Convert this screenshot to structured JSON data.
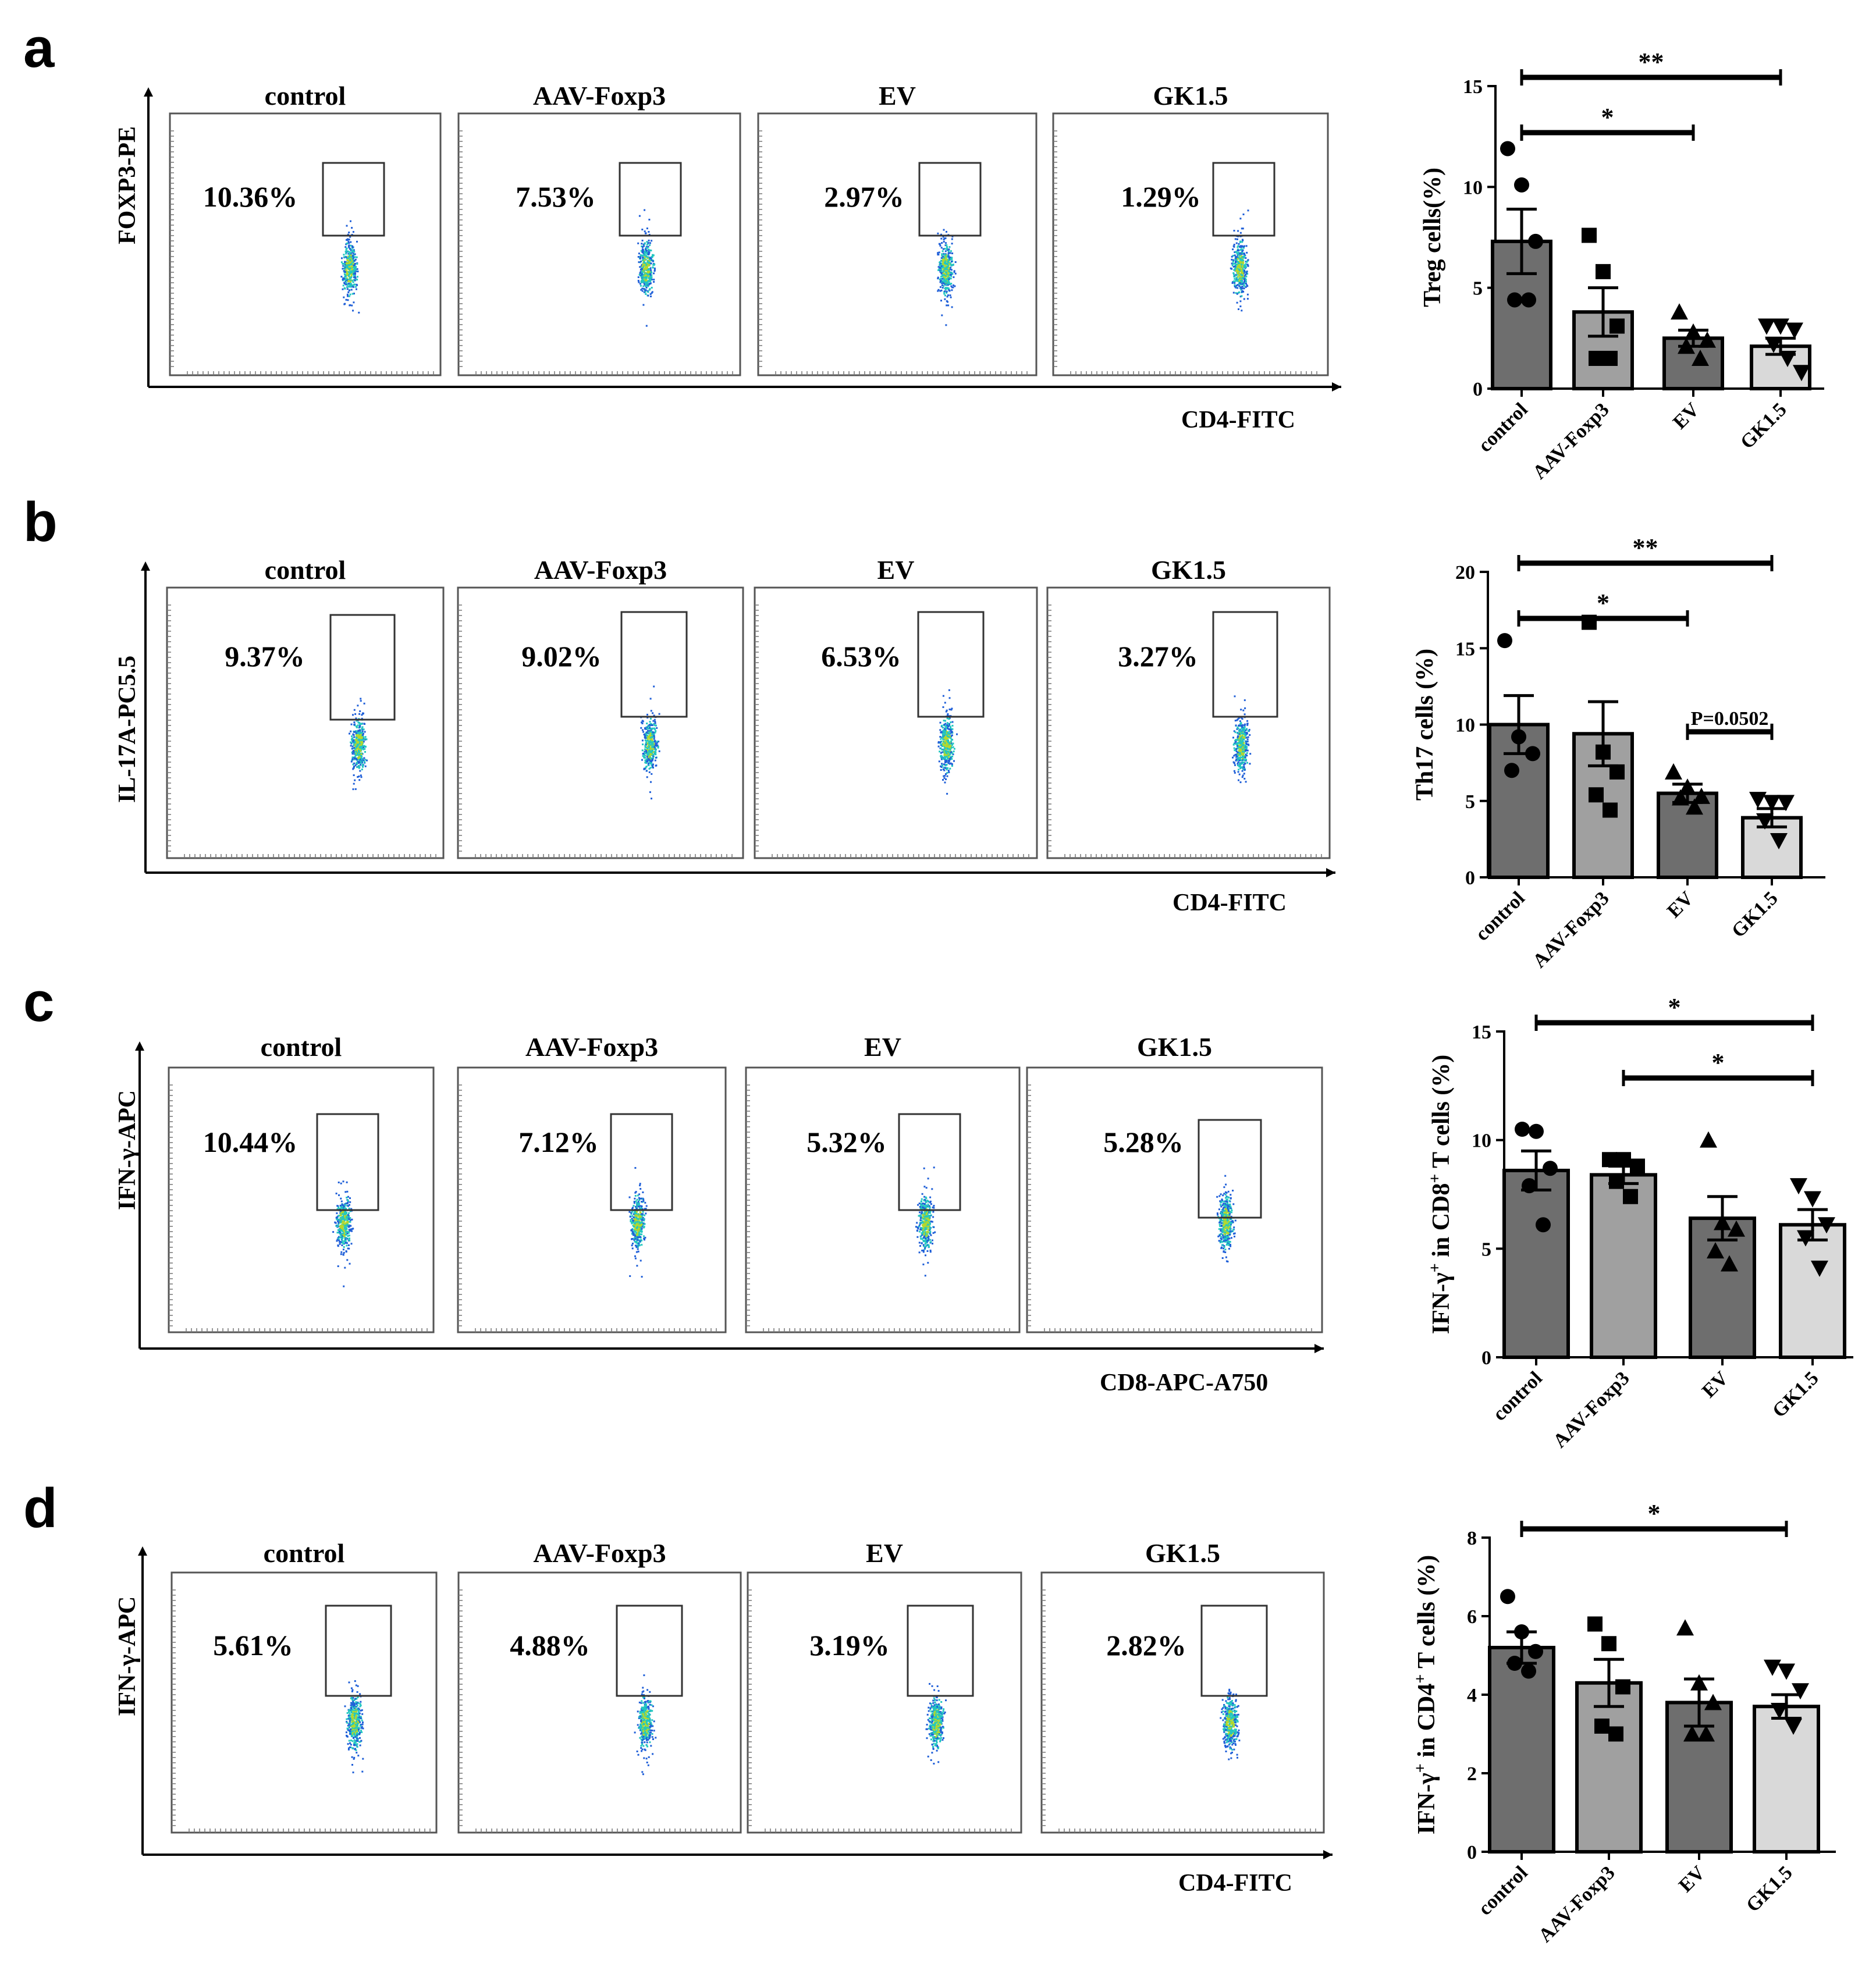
{
  "colors": {
    "bar_dark": "#6e6e6e",
    "bar_medium": "#a0a0a0",
    "bar_light": "#d9d9d9",
    "axis": "#000000",
    "dot_low": "#1f5fd8",
    "dot_mid": "#22c7c0",
    "dot_high": "#b7d82a"
  },
  "panels": [
    {
      "label": "a",
      "y_axis_label": "FOXP3-PE",
      "x_axis_label": "CD4-FITC",
      "plots": [
        {
          "title": "control",
          "percentage": "10.36%"
        },
        {
          "title": "AAV-Foxp3",
          "percentage": "7.53%"
        },
        {
          "title": "EV",
          "percentage": "2.97%"
        },
        {
          "title": "GK1.5",
          "percentage": "1.29%"
        }
      ]
    },
    {
      "label": "b",
      "y_axis_label": "IL-17A-PC5.5",
      "x_axis_label": "CD4-FITC",
      "plots": [
        {
          "title": "control",
          "percentage": "9.37%"
        },
        {
          "title": "AAV-Foxp3",
          "percentage": "9.02%"
        },
        {
          "title": "EV",
          "percentage": "6.53%"
        },
        {
          "title": "GK1.5",
          "percentage": "3.27%"
        }
      ]
    },
    {
      "label": "c",
      "y_axis_label": "IFN-γ-APC",
      "x_axis_label": "CD8-APC-A750",
      "plots": [
        {
          "title": "control",
          "percentage": "10.44%"
        },
        {
          "title": "AAV-Foxp3",
          "percentage": "7.12%"
        },
        {
          "title": "EV",
          "percentage": "5.32%"
        },
        {
          "title": "GK1.5",
          "percentage": "5.28%"
        }
      ]
    },
    {
      "label": "d",
      "y_axis_label": "IFN-γ-APC",
      "x_axis_label": "CD4-FITC",
      "plots": [
        {
          "title": "control",
          "percentage": "5.61%"
        },
        {
          "title": "AAV-Foxp3",
          "percentage": "4.88%"
        },
        {
          "title": "EV",
          "percentage": "3.19%"
        },
        {
          "title": "GK1.5",
          "percentage": "2.82%"
        }
      ]
    }
  ],
  "chart_data": [
    {
      "type": "bar",
      "panel": "a",
      "ylabel_parts": [
        "Treg cells(%)"
      ],
      "ylim": [
        0,
        15
      ],
      "yticks": [
        0,
        5,
        10,
        15
      ],
      "categories": [
        "control",
        "AAV-Foxp3",
        "EV",
        "GK1.5"
      ],
      "values": [
        7.3,
        3.8,
        2.5,
        2.1
      ],
      "sem": [
        1.6,
        1.2,
        0.4,
        0.4
      ],
      "points": [
        [
          11.9,
          10.1,
          7.3,
          4.4,
          4.4
        ],
        [
          7.6,
          5.8,
          3.1,
          1.5,
          1.5
        ],
        [
          3.8,
          2.8,
          2.4,
          2.1,
          1.5
        ],
        [
          3.1,
          3.1,
          2.9,
          2.2,
          1.5,
          0.8
        ]
      ],
      "markers": [
        "circle",
        "square",
        "triangle",
        "triangle-down"
      ],
      "significance": [
        {
          "from": 0,
          "to": 3,
          "label": "**"
        },
        {
          "from": 0,
          "to": 2,
          "label": "*"
        }
      ]
    },
    {
      "type": "bar",
      "panel": "b",
      "ylabel_parts": [
        "Th17 cells (%)"
      ],
      "ylim": [
        0,
        20
      ],
      "yticks": [
        0,
        5,
        10,
        15,
        20
      ],
      "categories": [
        "control",
        "AAV-Foxp3",
        "EV",
        "GK1.5"
      ],
      "values": [
        10.0,
        9.4,
        5.5,
        3.9
      ],
      "sem": [
        1.9,
        2.1,
        0.6,
        0.6
      ],
      "points": [
        [
          15.5,
          9.2,
          8.1,
          7.0
        ],
        [
          16.7,
          8.2,
          6.9,
          5.4,
          4.4
        ],
        [
          6.9,
          5.9,
          5.3,
          5.2,
          4.6
        ],
        [
          5.1,
          4.9,
          4.9,
          3.7,
          2.4
        ]
      ],
      "markers": [
        "circle",
        "square",
        "triangle",
        "triangle-down"
      ],
      "significance": [
        {
          "from": 0,
          "to": 3,
          "label": "**"
        },
        {
          "from": 0,
          "to": 2,
          "label": "*"
        },
        {
          "from": 2,
          "to": 3,
          "label": "P=0.0502"
        }
      ]
    },
    {
      "type": "bar",
      "panel": "c",
      "ylabel_parts": [
        "IFN-γ",
        "+",
        " in CD8",
        "+",
        " T cells (%)"
      ],
      "ylim": [
        0,
        15
      ],
      "yticks": [
        0,
        5,
        10,
        15
      ],
      "categories": [
        "control",
        "AAV-Foxp3",
        "EV",
        "GK1.5"
      ],
      "values": [
        8.6,
        8.4,
        6.4,
        6.1
      ],
      "sem": [
        0.9,
        0.4,
        1.0,
        0.7
      ],
      "points": [
        [
          10.5,
          10.4,
          8.7,
          7.9,
          6.1
        ],
        [
          9.1,
          9.1,
          8.8,
          8.1,
          7.4
        ],
        [
          10.0,
          6.2,
          5.9,
          4.9,
          4.3
        ],
        [
          7.9,
          7.3,
          6.1,
          5.5,
          4.1
        ]
      ],
      "markers": [
        "circle",
        "square",
        "triangle",
        "triangle-down"
      ],
      "significance": [
        {
          "from": 0,
          "to": 3,
          "label": "*"
        },
        {
          "from": 1,
          "to": 3,
          "label": "*"
        }
      ]
    },
    {
      "type": "bar",
      "panel": "d",
      "ylabel_parts": [
        "IFN-γ",
        "+",
        " in CD4",
        "+",
        " T cells (%)"
      ],
      "ylim": [
        0,
        8
      ],
      "yticks": [
        0,
        2,
        4,
        6,
        8
      ],
      "categories": [
        "control",
        "AAV-Foxp3",
        "EV",
        "GK1.5"
      ],
      "values": [
        5.2,
        4.3,
        3.8,
        3.7
      ],
      "sem": [
        0.4,
        0.6,
        0.6,
        0.3
      ],
      "points": [
        [
          6.5,
          5.6,
          5.1,
          4.8,
          4.6
        ],
        [
          5.8,
          5.3,
          4.2,
          3.2,
          3.0
        ],
        [
          5.7,
          4.3,
          3.8,
          3.0,
          3.0
        ],
        [
          4.7,
          4.6,
          4.1,
          3.6,
          3.2
        ]
      ],
      "markers": [
        "circle",
        "square",
        "triangle",
        "triangle-down"
      ],
      "significance": [
        {
          "from": 0,
          "to": 3,
          "label": "*"
        }
      ]
    }
  ]
}
